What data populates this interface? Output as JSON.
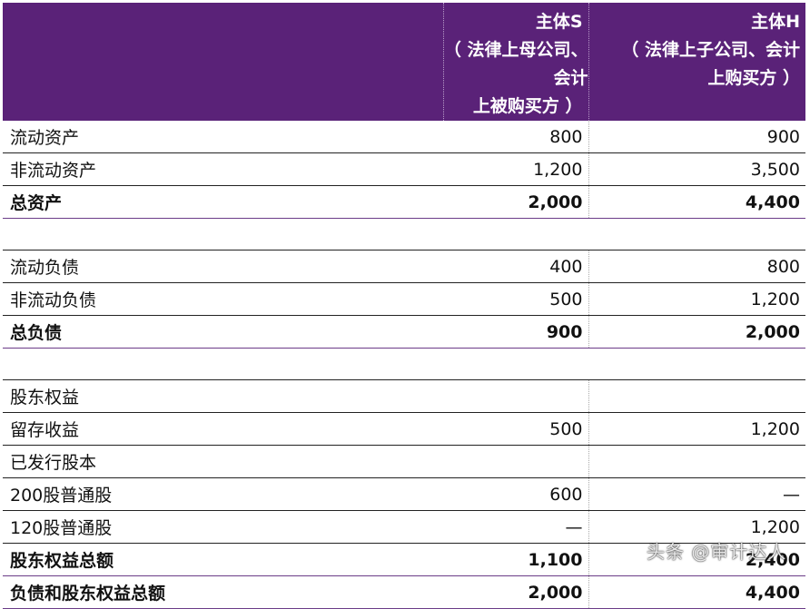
{
  "header": {
    "col_s": [
      "主体S",
      "（ 法律上母公司、会计",
      "上被购买方 ）"
    ],
    "col_h": [
      "主体H",
      "（ 法律上子公司、会计",
      "上购买方 ）"
    ]
  },
  "rows": [
    {
      "label": "流动资产",
      "s": "800",
      "h": "900",
      "bold": false
    },
    {
      "label": "非流动资产",
      "s": "1,200",
      "h": "3,500",
      "bold": false
    },
    {
      "label": "总资产",
      "s": "2,000",
      "h": "4,400",
      "bold": true
    },
    {
      "label": "",
      "s": "",
      "h": "",
      "bold": false,
      "spacer": true
    },
    {
      "label": "流动负债",
      "s": "400",
      "h": "800",
      "bold": false
    },
    {
      "label": "非流动负债",
      "s": "500",
      "h": "1,200",
      "bold": false
    },
    {
      "label": "总负债",
      "s": "900",
      "h": "2,000",
      "bold": true
    },
    {
      "label": "",
      "s": "",
      "h": "",
      "bold": false,
      "spacer": true
    },
    {
      "label": "股东权益",
      "s": "",
      "h": "",
      "bold": false
    },
    {
      "label": "留存收益",
      "s": "500",
      "h": "1,200",
      "bold": false
    },
    {
      "label": "已发行股本",
      "s": "",
      "h": "",
      "bold": false
    },
    {
      "label": "200股普通股",
      "s": "600",
      "h": "—",
      "bold": false
    },
    {
      "label": "120股普通股",
      "s": "—",
      "h": "1,200",
      "bold": false
    },
    {
      "label": "股东权益总额",
      "s": "1,100",
      "h": "2,400",
      "bold": true
    },
    {
      "label": "负债和股东权益总额",
      "s": "2,000",
      "h": "4,400",
      "bold": true
    }
  ],
  "watermark": "头条 @审计达人"
}
